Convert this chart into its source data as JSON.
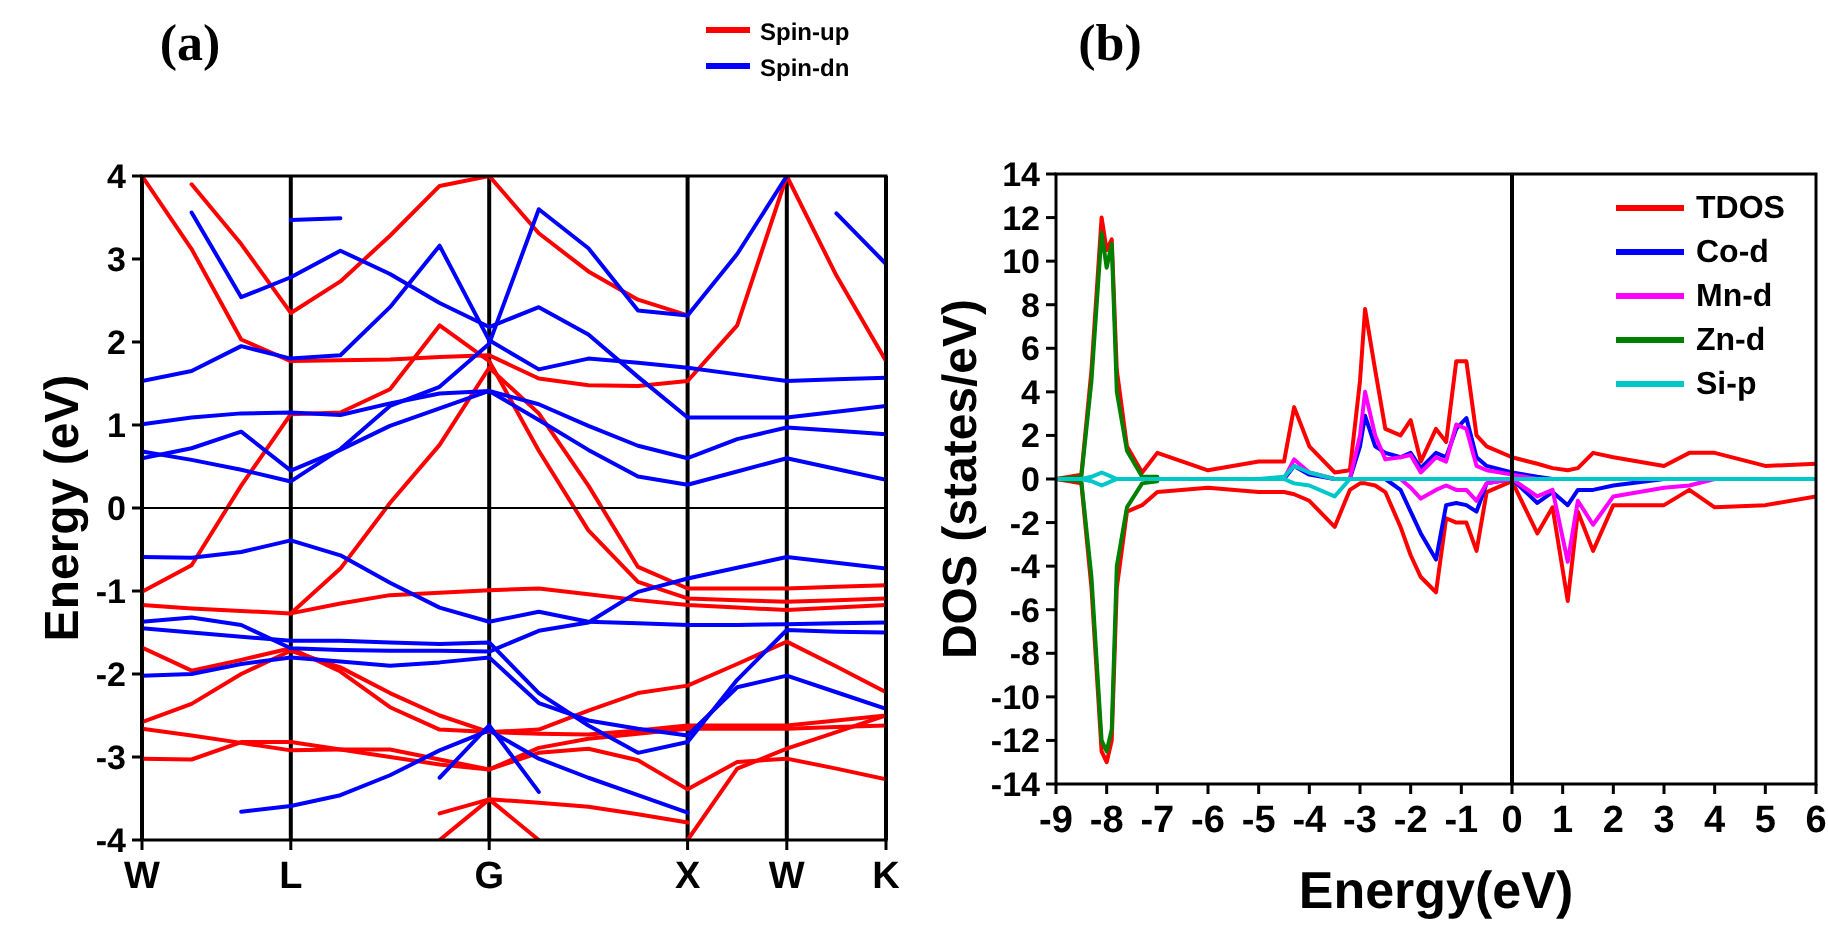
{
  "chart_data": [
    {
      "type": "line",
      "title": "(a)",
      "ylabel": "Energy (eV)",
      "ylim": [
        -4,
        4
      ],
      "categories": [
        "W",
        null,
        null,
        "L",
        null,
        null,
        null,
        "G",
        null,
        null,
        null,
        "X",
        null,
        "W",
        null,
        "K"
      ],
      "yticks": [
        -4,
        -3,
        -2,
        -1,
        0,
        1,
        2,
        3,
        4
      ],
      "legend": "top right",
      "grid": "x",
      "ref_lines": [
        {
          "axis": "y",
          "value": 0
        }
      ],
      "series": [
        {
          "name": "Spin-up",
          "color": "#ff0000",
          "values": [
            4,
            3.12,
            2.03,
            1.77,
            1.78,
            1.79,
            1.82,
            1.84,
            1.56,
            1.48,
            1.47,
            1.53,
            2.2,
            4,
            null,
            null
          ]
        },
        {
          "color": "#ff0000",
          "values": [
            null,
            3.9,
            3.18,
            2.35,
            2.73,
            3.28,
            3.88,
            4,
            null,
            null,
            null,
            null,
            null,
            null,
            null,
            null
          ]
        },
        {
          "color": "#ff0000",
          "values": [
            -1.01,
            -0.69,
            0.27,
            1.13,
            1.15,
            1.43,
            2.2,
            1.77,
            0.69,
            -0.27,
            -0.89,
            -1.09,
            -1.11,
            -1.13,
            -1.11,
            -1.09
          ]
        },
        {
          "color": "#ff0000",
          "values": [
            null,
            null,
            null,
            -1.27,
            -0.73,
            0.06,
            0.76,
            1.69,
            1.14,
            0.27,
            -0.71,
            -0.97,
            -0.97,
            -0.97,
            -0.95,
            -0.93
          ]
        },
        {
          "color": "#ff0000",
          "values": [
            -1.17,
            -1.21,
            -1.24,
            -1.27,
            -1.15,
            -1.05,
            -1.02,
            -0.99,
            -0.97,
            -1.04,
            -1.11,
            -1.17,
            -1.2,
            -1.23,
            -1.2,
            -1.17
          ]
        },
        {
          "color": "#ff0000",
          "values": [
            -1.68,
            -1.96,
            -1.83,
            -1.69,
            -1.97,
            -2.4,
            -2.67,
            -2.7,
            -2.72,
            -2.73,
            -2.68,
            -2.62,
            -2.62,
            -2.62,
            -2.56,
            -2.5
          ]
        },
        {
          "color": "#ff0000",
          "values": [
            -2.58,
            -2.36,
            -2,
            -1.72,
            -1.92,
            -2.23,
            -2.5,
            -2.7,
            -2.67,
            -2.44,
            -2.23,
            -2.14,
            -1.88,
            -1.61,
            -1.91,
            -2.22
          ]
        },
        {
          "color": "#ff0000",
          "values": [
            -2.66,
            -2.74,
            -2.83,
            -2.92,
            -2.91,
            -2.91,
            -3.03,
            -3.15,
            -2.89,
            -2.78,
            -2.72,
            -2.66,
            -2.66,
            -2.66,
            -2.64,
            -2.62
          ]
        },
        {
          "color": "#ff0000",
          "values": [
            -3.02,
            -3.03,
            -2.82,
            -2.82,
            -2.91,
            -3,
            -3.09,
            -3.15,
            -2.95,
            -2.9,
            -3.04,
            -3.39,
            -3.06,
            -3.02,
            -3.14,
            -3.27
          ]
        },
        {
          "color": "#ff0000",
          "values": [
            null,
            null,
            null,
            null,
            null,
            null,
            -3.68,
            -3.51,
            -3.55,
            -3.6,
            -3.69,
            -3.79,
            null,
            null,
            null,
            null
          ]
        },
        {
          "color": "#ff0000",
          "values": [
            null,
            null,
            null,
            null,
            null,
            null,
            -4,
            -3.51,
            -4,
            null,
            null,
            null,
            null,
            null,
            null,
            null
          ]
        },
        {
          "color": "#ff0000",
          "values": [
            null,
            null,
            null,
            null,
            null,
            null,
            null,
            null,
            null,
            null,
            null,
            -4,
            -3.14,
            -2.9,
            -2.7,
            -2.5
          ]
        },
        {
          "color": "#ff0000",
          "values": [
            null,
            null,
            null,
            null,
            null,
            null,
            null,
            null,
            null,
            null,
            null,
            null,
            null,
            4,
            2.8,
            1.77
          ]
        },
        {
          "color": "#ff0000",
          "values": [
            null,
            null,
            null,
            null,
            null,
            null,
            null,
            4,
            3.31,
            2.85,
            2.51,
            2.32,
            null,
            null,
            null,
            null
          ]
        },
        {
          "name": "Spin-dn",
          "color": "#0000ff",
          "values": [
            null,
            3.56,
            2.54,
            2.78,
            3.1,
            2.82,
            2.47,
            2.18,
            2.42,
            2.09,
            1.58,
            1.09,
            1.09,
            1.09,
            1.16,
            1.23
          ]
        },
        {
          "color": "#0000ff",
          "values": [
            1.53,
            1.65,
            1.95,
            1.8,
            1.84,
            2.42,
            3.16,
            2.02,
            1.67,
            1.8,
            1.75,
            1.69,
            1.61,
            1.53,
            1.55,
            1.57
          ]
        },
        {
          "color": "#0000ff",
          "values": [
            1.01,
            1.09,
            1.14,
            1.15,
            1.12,
            1.26,
            1.38,
            1.41,
            1.25,
            0.99,
            0.75,
            0.6,
            0.83,
            0.97,
            0.93,
            0.89
          ]
        },
        {
          "color": "#0000ff",
          "values": [
            0.68,
            0.58,
            0.46,
            0.32,
            0.71,
            1.23,
            1.46,
            1.98,
            3.6,
            3.13,
            2.38,
            2.32,
            3.06,
            4,
            null,
            null
          ]
        },
        {
          "color": "#0000ff",
          "values": [
            0.6,
            0.72,
            0.92,
            0.45,
            0.7,
            0.99,
            1.2,
            1.41,
            1.06,
            0.7,
            0.38,
            0.28,
            0.44,
            0.6,
            0.47,
            0.34
          ]
        },
        {
          "color": "#0000ff",
          "values": [
            null,
            null,
            null,
            3.47,
            3.49,
            null,
            null,
            null,
            null,
            null,
            null,
            null,
            null,
            null,
            null,
            null
          ]
        },
        {
          "color": "#0000ff",
          "values": [
            null,
            null,
            null,
            null,
            null,
            null,
            null,
            null,
            null,
            null,
            null,
            null,
            null,
            null,
            3.55,
            2.94
          ]
        },
        {
          "color": "#0000ff",
          "values": [
            -0.59,
            -0.6,
            -0.53,
            -0.39,
            -0.57,
            -0.9,
            -1.2,
            -1.37,
            -1.25,
            -1.37,
            -1.39,
            -1.41,
            -1.41,
            -1.4,
            -1.39,
            -1.38
          ]
        },
        {
          "color": "#0000ff",
          "values": [
            -1.37,
            -1.32,
            -1.41,
            -1.69,
            -1.71,
            -1.72,
            -1.72,
            -1.73,
            -1.48,
            -1.38,
            -1.01,
            -0.85,
            -0.72,
            -0.59,
            -0.66,
            -0.73
          ]
        },
        {
          "color": "#0000ff",
          "values": [
            -1.45,
            -1.5,
            -1.55,
            -1.6,
            -1.6,
            -1.62,
            -1.64,
            -1.62,
            -2.23,
            -2.62,
            -2.95,
            -2.82,
            -2.07,
            -1.47,
            -1.49,
            -1.5
          ]
        },
        {
          "color": "#0000ff",
          "values": [
            -2.02,
            -2,
            -1.88,
            -1.8,
            -1.85,
            -1.9,
            -1.86,
            -1.8,
            -2.35,
            -2.56,
            -2.66,
            -2.74,
            -2.16,
            -2.02,
            -2.22,
            -2.42
          ]
        },
        {
          "color": "#0000ff",
          "values": [
            null,
            null,
            -3.66,
            -3.59,
            -3.46,
            -3.22,
            -2.92,
            -2.68,
            -3.02,
            -3.25,
            -3.46,
            -3.67,
            null,
            null,
            null,
            null
          ]
        },
        {
          "color": "#0000ff",
          "values": [
            null,
            null,
            null,
            null,
            null,
            null,
            -3.25,
            -2.62,
            -3.42,
            null,
            null,
            null,
            null,
            null,
            null,
            null
          ]
        }
      ]
    },
    {
      "type": "line",
      "title": "(b)",
      "xlabel": "Energy(eV)",
      "ylabel": "DOS (states/eV)",
      "xlim": [
        -9,
        6
      ],
      "ylim": [
        -14,
        14
      ],
      "xticks": [
        -9,
        -8,
        -7,
        -6,
        -5,
        -4,
        -3,
        -2,
        -1,
        0,
        1,
        2,
        3,
        4,
        5,
        6
      ],
      "yticks": [
        -14,
        -12,
        -10,
        -8,
        -6,
        -4,
        -2,
        0,
        2,
        4,
        6,
        8,
        10,
        12,
        14
      ],
      "legend": "top right",
      "grid": false,
      "ref_lines": [
        {
          "axis": "x",
          "value": 0
        }
      ],
      "x": [
        -9,
        -8.5,
        -8.3,
        -8.1,
        -8,
        -7.9,
        -7.8,
        -7.6,
        -7.3,
        -7,
        -6,
        -5,
        -4.5,
        -4.3,
        -4,
        -3.5,
        -3.2,
        -3,
        -2.9,
        -2.7,
        -2.5,
        -2.2,
        -2,
        -1.8,
        -1.5,
        -1.3,
        -1.1,
        -0.9,
        -0.7,
        -0.5,
        0,
        0.5,
        0.8,
        1.1,
        1.3,
        1.6,
        2,
        3,
        3.5,
        4,
        5,
        6
      ],
      "series": [
        {
          "name": "TDOS",
          "color": "#ff0000",
          "values": [
            0,
            0.2,
            5,
            12,
            10.5,
            11,
            5,
            1.5,
            0.3,
            1.2,
            0.4,
            0.8,
            0.8,
            3.3,
            1.5,
            0.3,
            0.4,
            4.5,
            7.8,
            5,
            2.3,
            2,
            2.7,
            0.8,
            2.3,
            1.7,
            5.4,
            5.4,
            2,
            1.5,
            1,
            0.7,
            0.5,
            0.4,
            0.5,
            1.2,
            1,
            0.6,
            1.2,
            1.2,
            0.6,
            0.7
          ]
        },
        {
          "color": "#ff0000",
          "values": [
            0,
            -0.2,
            -5,
            -12.5,
            -13,
            -12,
            -5,
            -1.5,
            -1.2,
            -0.6,
            -0.4,
            -0.6,
            -0.6,
            -0.7,
            -1,
            -2.2,
            -0.5,
            -0.2,
            -0.2,
            -0.3,
            -0.6,
            -2.2,
            -3.5,
            -4.5,
            -5.2,
            -1.8,
            -2,
            -2,
            -3.3,
            -0.6,
            -0.1,
            -2.5,
            -1.3,
            -5.6,
            -1.5,
            -3.3,
            -1.2,
            -1.2,
            -0.5,
            -1.3,
            -1.2,
            -0.8
          ]
        },
        {
          "name": "Co-d",
          "color": "#0000ff",
          "values": [
            null,
            null,
            null,
            null,
            null,
            null,
            null,
            null,
            null,
            null,
            null,
            null,
            0,
            0.6,
            0.2,
            0,
            0,
            1.5,
            2.9,
            1.5,
            1.2,
            1,
            1.2,
            0.5,
            1.2,
            1,
            2.3,
            2.8,
            1,
            0.6,
            0.3,
            0.1,
            0,
            0,
            0,
            null,
            null,
            null,
            null,
            null,
            null,
            null
          ]
        },
        {
          "color": "#0000ff",
          "values": [
            null,
            null,
            null,
            null,
            null,
            null,
            null,
            null,
            null,
            null,
            null,
            null,
            null,
            null,
            null,
            null,
            null,
            null,
            null,
            null,
            0,
            -0.5,
            -1.5,
            -2.5,
            -3.7,
            -1.2,
            -1.1,
            -1.2,
            -1.5,
            -0.2,
            0,
            -1.1,
            -0.6,
            -1.2,
            -0.5,
            -0.5,
            -0.3,
            0,
            null,
            null,
            null,
            null
          ]
        },
        {
          "name": "Mn-d",
          "color": "#ff00ff",
          "values": [
            null,
            null,
            null,
            null,
            null,
            null,
            null,
            null,
            null,
            null,
            null,
            null,
            0,
            0.9,
            0.3,
            0,
            0,
            2,
            4,
            2,
            0.9,
            1,
            1.1,
            0.3,
            1,
            0.8,
            2.5,
            2.3,
            0.6,
            0.4,
            0.2,
            0,
            null,
            null,
            null,
            null,
            null,
            null,
            null,
            null,
            null,
            null
          ]
        },
        {
          "color": "#ff00ff",
          "values": [
            null,
            null,
            null,
            null,
            null,
            null,
            null,
            null,
            null,
            null,
            null,
            null,
            null,
            null,
            null,
            null,
            null,
            null,
            null,
            null,
            null,
            0,
            -0.4,
            -0.9,
            -0.5,
            -0.3,
            -0.5,
            -0.5,
            -1,
            -0.2,
            0,
            -0.8,
            -0.5,
            -3.8,
            -1,
            -2.1,
            -0.8,
            -0.4,
            -0.3,
            0,
            null,
            null
          ]
        },
        {
          "name": "Zn-d",
          "color": "#008000",
          "values": [
            0,
            0.1,
            4.5,
            11.3,
            9.7,
            10.8,
            4,
            1.3,
            0.1,
            0.1,
            null,
            null,
            null,
            null,
            null,
            null,
            null,
            null,
            null,
            null,
            null,
            null,
            null,
            null,
            null,
            null,
            null,
            null,
            null,
            null,
            null,
            null,
            null,
            null,
            null,
            null,
            null,
            null,
            null,
            null,
            null,
            null
          ]
        },
        {
          "color": "#008000",
          "values": [
            0,
            -0.1,
            -4.5,
            -12,
            -12.5,
            -11.5,
            -4,
            -1.3,
            -0.2,
            -0.1,
            null,
            null,
            null,
            null,
            null,
            null,
            null,
            null,
            null,
            null,
            null,
            null,
            null,
            null,
            null,
            null,
            null,
            null,
            null,
            null,
            null,
            null,
            null,
            null,
            null,
            null,
            null,
            null,
            null,
            null,
            null,
            null
          ]
        },
        {
          "name": "Si-p",
          "color": "#00c8c8",
          "values": [
            0,
            0,
            0.1,
            0.3,
            0.2,
            0.1,
            0,
            0,
            0,
            0,
            0,
            0,
            0.1,
            0.6,
            0.3,
            0,
            0,
            0,
            0,
            0,
            0,
            0,
            0,
            0,
            0,
            0,
            0,
            0,
            0,
            0,
            0,
            0,
            0,
            0,
            0,
            0,
            0,
            0,
            0,
            0,
            0,
            0
          ]
        },
        {
          "color": "#00c8c8",
          "values": [
            0,
            0,
            -0.1,
            -0.3,
            -0.2,
            -0.1,
            0,
            0,
            0,
            0,
            0,
            0,
            0,
            -0.2,
            -0.3,
            -0.8,
            0,
            0,
            0,
            0,
            0,
            0,
            0,
            0,
            0,
            0,
            0,
            0,
            0,
            0,
            0,
            0,
            0,
            0,
            0,
            0,
            0,
            0,
            0,
            0,
            0,
            0
          ]
        }
      ]
    }
  ]
}
